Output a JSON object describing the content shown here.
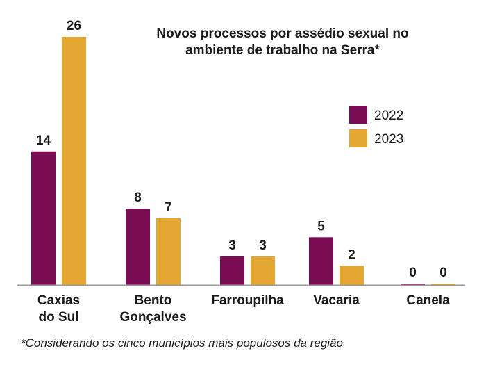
{
  "chart_data": {
    "type": "bar",
    "title": [
      "Novos processos por assédio sexual no",
      "ambiente de trabalho na Serra*"
    ],
    "categories": [
      [
        "Caxias",
        "do Sul"
      ],
      [
        "Bento",
        "Gonçalves"
      ],
      [
        "Farroupilha"
      ],
      [
        "Vacaria"
      ],
      [
        "Canela"
      ]
    ],
    "series": [
      {
        "name": "2022",
        "color": "#7b0b52",
        "values": [
          14,
          8,
          3,
          5,
          0
        ]
      },
      {
        "name": "2023",
        "color": "#e3a732",
        "values": [
          26,
          7,
          3,
          2,
          0
        ]
      }
    ],
    "ylim": [
      0,
      26
    ],
    "grid": false,
    "legend": "top-right"
  },
  "footnote": "*Considerando os cinco municípios mais populosos da região"
}
